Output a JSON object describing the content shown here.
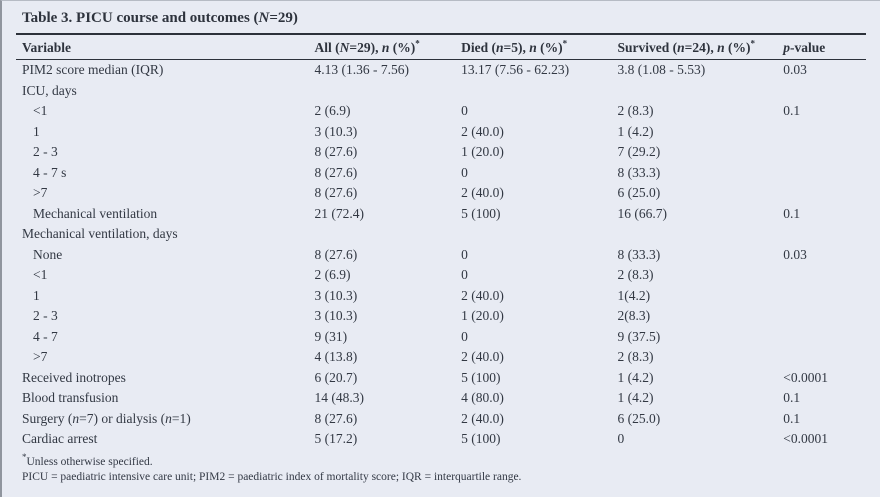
{
  "title": "Table 3. PICU course and outcomes (N=29)",
  "table": {
    "columns": {
      "variable": "Variable",
      "all": "All (N=29), n (%)*",
      "died": "Died (n=5), n (%)*",
      "survived": "Survived (n=24), n (%)*",
      "p": "p-value"
    },
    "rows": [
      {
        "variable": "PIM2 score median (IQR)",
        "indent": 0,
        "all": "4.13 (1.36 - 7.56)",
        "died": "13.17 (7.56 - 62.23)",
        "survived": "3.8 (1.08 - 5.53)",
        "p": "0.03"
      },
      {
        "variable": "ICU, days",
        "indent": 0,
        "all": "",
        "died": "",
        "survived": "",
        "p": ""
      },
      {
        "variable": "<1",
        "indent": 1,
        "all": "2 (6.9)",
        "died": "0",
        "survived": "2 (8.3)",
        "p": "0.1"
      },
      {
        "variable": "1",
        "indent": 1,
        "all": "3 (10.3)",
        "died": "2 (40.0)",
        "survived": "1 (4.2)",
        "p": ""
      },
      {
        "variable": "2 - 3",
        "indent": 1,
        "all": "8 (27.6)",
        "died": "1 (20.0)",
        "survived": "7 (29.2)",
        "p": ""
      },
      {
        "variable": "4 - 7 s",
        "indent": 1,
        "all": "8 (27.6)",
        "died": "0",
        "survived": "8 (33.3)",
        "p": ""
      },
      {
        "variable": ">7",
        "indent": 1,
        "all": "8 (27.6)",
        "died": "2 (40.0)",
        "survived": "6 (25.0)",
        "p": ""
      },
      {
        "variable": "Mechanical ventilation",
        "indent": 1,
        "all": "21 (72.4)",
        "died": "5 (100)",
        "survived": "16 (66.7)",
        "p": "0.1"
      },
      {
        "variable": "Mechanical ventilation, days",
        "indent": 0,
        "all": "",
        "died": "",
        "survived": "",
        "p": ""
      },
      {
        "variable": "None",
        "indent": 1,
        "all": "8 (27.6)",
        "died": "0",
        "survived": "8 (33.3)",
        "p": "0.03"
      },
      {
        "variable": "<1",
        "indent": 1,
        "all": "2 (6.9)",
        "died": "0",
        "survived": "2 (8.3)",
        "p": ""
      },
      {
        "variable": "1",
        "indent": 1,
        "all": "3 (10.3)",
        "died": "2 (40.0)",
        "survived": "1(4.2)",
        "p": ""
      },
      {
        "variable": "2 - 3",
        "indent": 1,
        "all": "3 (10.3)",
        "died": "1 (20.0)",
        "survived": "2(8.3)",
        "p": ""
      },
      {
        "variable": "4 - 7",
        "indent": 1,
        "all": "9 (31)",
        "died": "0",
        "survived": "9 (37.5)",
        "p": ""
      },
      {
        "variable": ">7",
        "indent": 1,
        "all": "4 (13.8)",
        "died": "2 (40.0)",
        "survived": "2 (8.3)",
        "p": ""
      },
      {
        "variable": "Received inotropes",
        "indent": 0,
        "all": "6 (20.7)",
        "died": "5 (100)",
        "survived": "1 (4.2)",
        "p": "<0.0001"
      },
      {
        "variable": "Blood transfusion",
        "indent": 0,
        "all": "14 (48.3)",
        "died": "4 (80.0)",
        "survived": "1 (4.2)",
        "p": "0.1"
      },
      {
        "variable": "Surgery (n=7) or dialysis (n=1)",
        "indent": 0,
        "all": "8 (27.6)",
        "died": "2 (40.0)",
        "survived": "6 (25.0)",
        "p": "0.1"
      },
      {
        "variable": "Cardiac arrest",
        "indent": 0,
        "all": "5 (17.2)",
        "died": "5 (100)",
        "survived": "0",
        "p": "<0.0001"
      }
    ]
  },
  "footnotes": [
    "*Unless otherwise specified.",
    "PICU = paediatric intensive care unit; PIM2 = paediatric index of mortality score; IQR = interquartile range."
  ],
  "colors": {
    "background": "#e8ebf3",
    "text": "#323843",
    "rule": "#2c313a"
  }
}
